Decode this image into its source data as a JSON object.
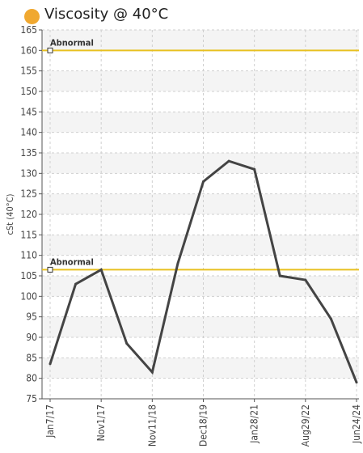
{
  "chart_data": {
    "type": "line",
    "title": "Viscosity @ 40°C",
    "ylabel": "cSt (40°C)",
    "xlabel": "",
    "ylim": [
      75,
      165
    ],
    "ytick_step": 5,
    "x_tick_labels": [
      "Jan7/17",
      "Nov1/17",
      "Nov11/18",
      "Dec18/19",
      "Jan28/21",
      "Aug29/22",
      "Jun24/24"
    ],
    "x_tick_positions": [
      0,
      2,
      4,
      6,
      8,
      10,
      12
    ],
    "series": [
      {
        "x": [
          0,
          1,
          2,
          3,
          4,
          5,
          6,
          7,
          8,
          9,
          10,
          11,
          12
        ],
        "values": [
          83.5,
          103,
          106.5,
          88.5,
          81.5,
          108,
          128,
          133,
          131,
          105,
          104,
          94.5,
          79
        ]
      }
    ],
    "thresholds": [
      {
        "label": "Abnormal",
        "value": 160
      },
      {
        "label": "Abnormal",
        "value": 106.5
      }
    ],
    "grid": true,
    "colors": {
      "title_dot": "#f0a830",
      "line": "#444444",
      "threshold": "#e8c020",
      "band": "#f4f4f4",
      "grid": "#cfcfcf",
      "axis": "#555555",
      "text": "#444444"
    }
  }
}
